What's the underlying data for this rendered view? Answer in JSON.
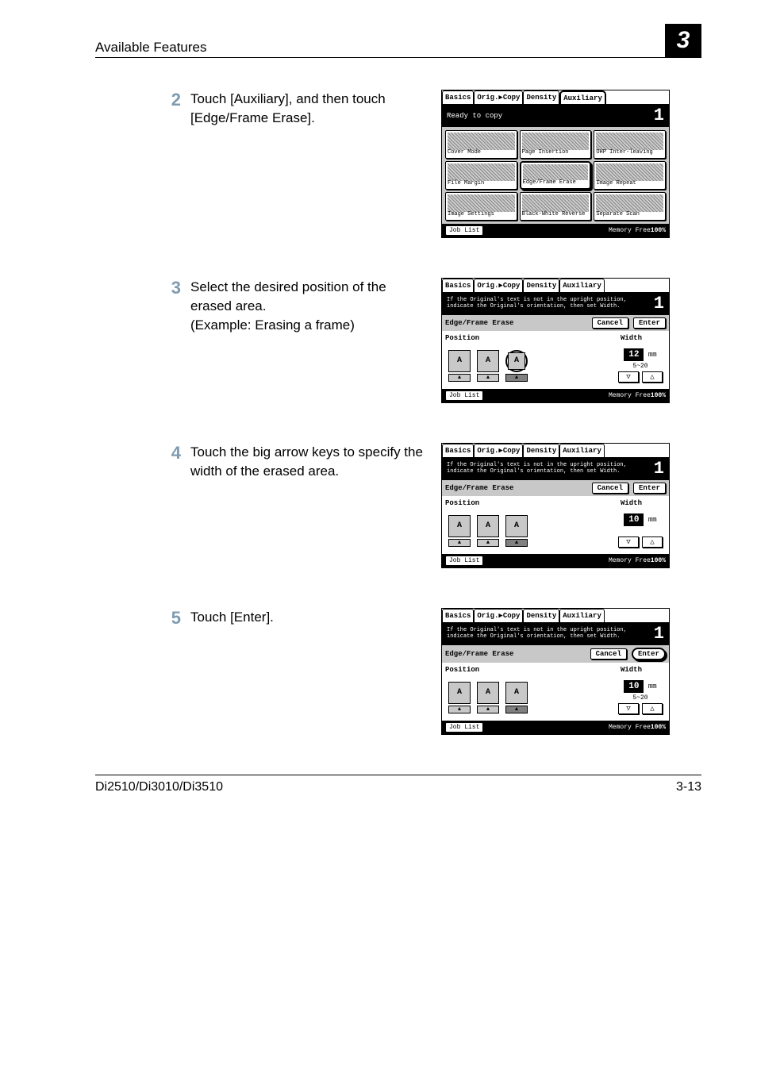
{
  "header": {
    "title": "Available Features",
    "chapter": "3"
  },
  "steps": [
    {
      "num": "2",
      "text": "Touch [Auxiliary], and then touch [Edge/Frame Erase]."
    },
    {
      "num": "3",
      "text_l1": "Select the desired position of the erased area.",
      "text_l2": "(Example: Erasing a frame)"
    },
    {
      "num": "4",
      "text": "Touch the big arrow keys to specify the width of the erased area."
    },
    {
      "num": "5",
      "text": "Touch [Enter]."
    }
  ],
  "lcd_common": {
    "tabs": {
      "basics": "Basics",
      "orig": "Orig.▶Copy",
      "density": "Density",
      "aux": "Auxiliary"
    },
    "job_list": "Job List",
    "mem_free": "Memory Free",
    "mem_pct": "100%",
    "counter": "1"
  },
  "lcd2": {
    "status": "Ready to copy",
    "buttons": {
      "cover": "Cover Mode",
      "page": "Page Insertion",
      "ohp": "OHP Inter-leaving",
      "file": "File Margin",
      "edge": "Edge/Frame Erase",
      "repeat": "Image Repeat",
      "settings": "Image Settings",
      "bw": "Black-White Reverse",
      "scan": "Separate Scan"
    }
  },
  "lcd_erase": {
    "msg": "If the Original's text is not in the upright position, indicate the Original's orientation, then set Width.",
    "title": "Edge/Frame Erase",
    "cancel": "Cancel",
    "enter": "Enter",
    "position": "Position",
    "width": "Width",
    "unit": "mm",
    "range": "5~20"
  },
  "lcd3": {
    "value": "12"
  },
  "lcd4": {
    "value": "10"
  },
  "lcd5": {
    "value": "10"
  },
  "footer": {
    "model": "Di2510/Di3010/Di3510",
    "page": "3-13"
  },
  "colors": {
    "step_num": "#7f9bb0",
    "lcd_gray": "#c8c8c8"
  }
}
